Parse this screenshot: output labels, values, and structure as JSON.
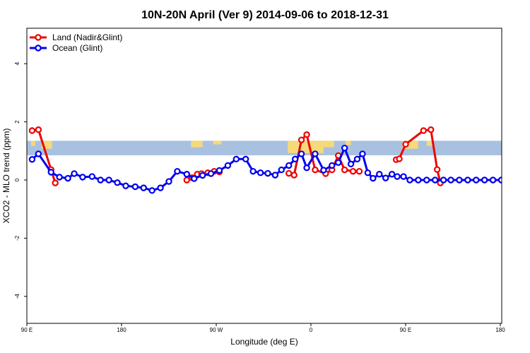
{
  "chart_data": {
    "type": "line",
    "title": "10N-20N April (Ver 9)   2014-09-06 to 2018-12-31",
    "xlabel": "Longitude (deg E)",
    "ylabel": "XCO2 - MLO trend (ppm)",
    "xlim": [
      90,
      450
    ],
    "ylim": [
      -5,
      5
    ],
    "x_ticks": [
      {
        "value": 90,
        "label": "90 E"
      },
      {
        "value": 180,
        "label": "180"
      },
      {
        "value": 270,
        "label": "90 W"
      },
      {
        "value": 360,
        "label": "0"
      },
      {
        "value": 450,
        "label": "90 E"
      },
      {
        "value": 540,
        "label": "180"
      }
    ],
    "y_ticks": [
      {
        "value": -4,
        "label": "-4"
      },
      {
        "value": -2,
        "label": "-2"
      },
      {
        "value": 0,
        "label": "0"
      },
      {
        "value": 2,
        "label": "2"
      },
      {
        "value": 4,
        "label": "4"
      }
    ],
    "legend_position": "top-left",
    "map_strip": {
      "ymin": 0.85,
      "ymax": 1.35,
      "ocean_color": "#a9c1e0",
      "land_color": "#f5d97a"
    },
    "series": [
      {
        "name": "Land (Nadir&Glint)",
        "color": "#ee0000",
        "segments": [
          {
            "x": [
              95,
              101,
              113,
              117
            ],
            "y": [
              1.7,
              1.73,
              0.36,
              -0.1
            ]
          },
          {
            "x": [
              242,
              247,
              252,
              256,
              262,
              268,
              273
            ],
            "y": [
              0.0,
              0.08,
              0.2,
              0.22,
              0.25,
              0.3,
              0.28
            ]
          },
          {
            "x": [
              339,
              344,
              351,
              356,
              364,
              374,
              380,
              386,
              392,
              400,
              406
            ],
            "y": [
              0.23,
              0.17,
              1.38,
              1.56,
              0.35,
              0.22,
              0.35,
              0.84,
              0.35,
              0.3,
              0.3
            ]
          },
          {
            "x": [
              441,
              444,
              450,
              467,
              474,
              480,
              483
            ],
            "y": [
              0.7,
              0.73,
              1.23,
              1.7,
              1.73,
              0.36,
              -0.1
            ]
          }
        ]
      },
      {
        "name": "Ocean (Glint)",
        "color": "#0000ee",
        "segments": [
          {
            "x": [
              95,
              101,
              113,
              121,
              129,
              135,
              143,
              152,
              160,
              168,
              176,
              184,
              193,
              201,
              209,
              217,
              225,
              233,
              242,
              249,
              257,
              265,
              273,
              281,
              289,
              298,
              305,
              312,
              319,
              326,
              332,
              339,
              345,
              351,
              356,
              364,
              372,
              380,
              386,
              392,
              398,
              404,
              409,
              414,
              419,
              425,
              431,
              437,
              442,
              448,
              454,
              462,
              470,
              478,
              486,
              493,
              501,
              509,
              517,
              525,
              533,
              541
            ],
            "y": [
              0.71,
              0.9,
              0.27,
              0.1,
              0.06,
              0.22,
              0.1,
              0.12,
              0.0,
              0.0,
              -0.09,
              -0.2,
              -0.23,
              -0.27,
              -0.36,
              -0.27,
              -0.05,
              0.3,
              0.2,
              0.05,
              0.16,
              0.22,
              0.33,
              0.5,
              0.72,
              0.72,
              0.3,
              0.25,
              0.23,
              0.17,
              0.35,
              0.5,
              0.72,
              0.9,
              0.42,
              0.9,
              0.34,
              0.5,
              0.6,
              1.1,
              0.55,
              0.72,
              0.9,
              0.25,
              0.06,
              0.2,
              0.07,
              0.2,
              0.12,
              0.12,
              0.0,
              0.0,
              0.0,
              0.0,
              0.0,
              0.0,
              0.0,
              0.0,
              0.0,
              0.0,
              0.0,
              0.0
            ]
          }
        ]
      }
    ]
  }
}
